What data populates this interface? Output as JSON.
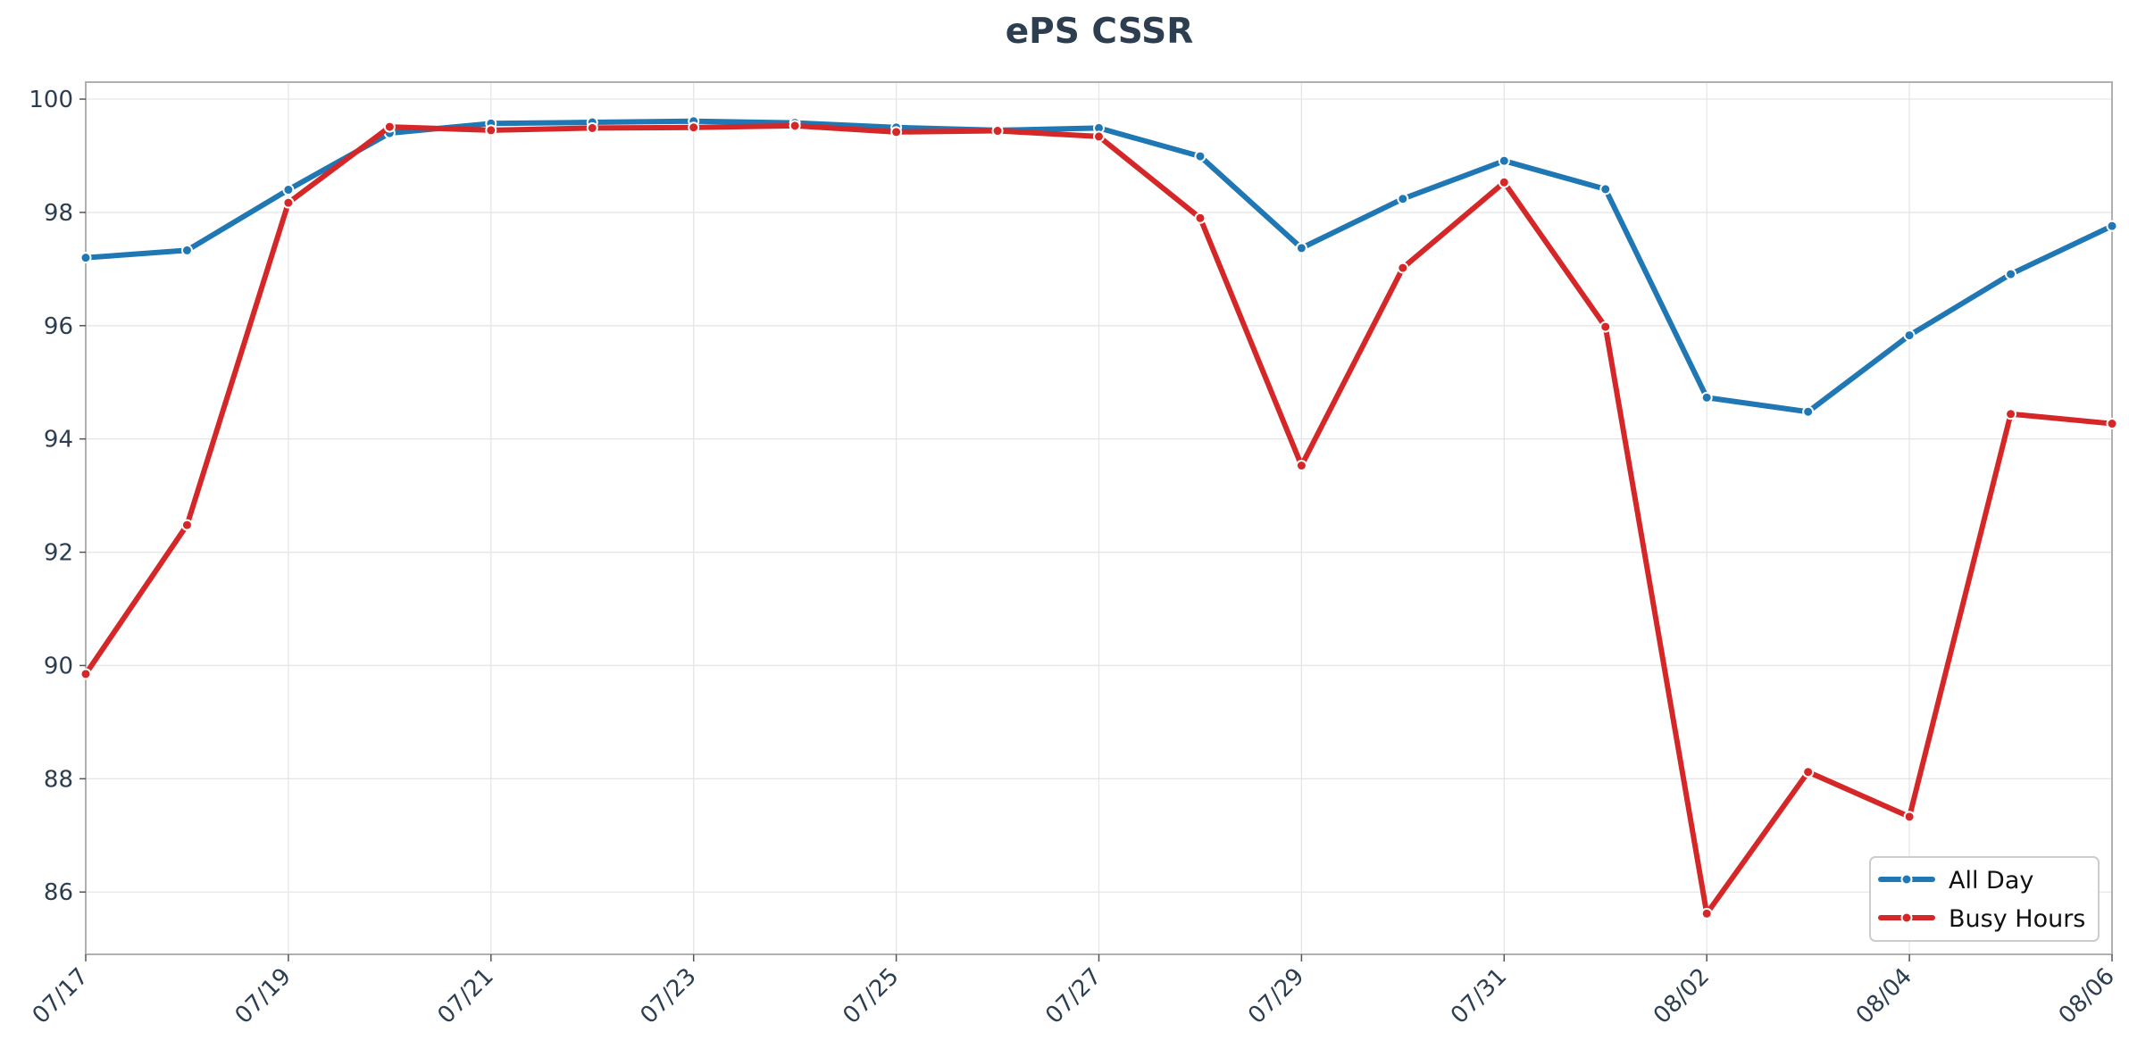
{
  "chart_data": {
    "type": "line",
    "title": "ePS CSSR",
    "xlabel": "",
    "ylabel": "",
    "x": [
      "07/17",
      "07/18",
      "07/19",
      "07/20",
      "07/21",
      "07/22",
      "07/23",
      "07/24",
      "07/25",
      "07/26",
      "07/27",
      "07/28",
      "07/29",
      "07/30",
      "07/31",
      "08/01",
      "08/02",
      "08/03",
      "08/04",
      "08/05",
      "08/06"
    ],
    "x_tick_labels": [
      "07/17",
      "07/19",
      "07/21",
      "07/23",
      "07/25",
      "07/27",
      "07/29",
      "07/31",
      "08/02",
      "08/04",
      "08/06"
    ],
    "ylim": [
      84.9,
      100.3
    ],
    "y_ticks": [
      86,
      88,
      90,
      92,
      94,
      96,
      98,
      100
    ],
    "grid": true,
    "legend_position": "bottom-right",
    "series": [
      {
        "name": "All Day",
        "color": "#1f77b4",
        "values": [
          97.2,
          97.33,
          98.4,
          99.4,
          99.57,
          99.59,
          99.61,
          99.58,
          99.5,
          99.45,
          99.49,
          98.99,
          97.37,
          98.24,
          98.91,
          98.41,
          94.73,
          94.48,
          95.83,
          96.91,
          97.76
        ]
      },
      {
        "name": "Busy Hours",
        "color": "#d62728",
        "values": [
          89.85,
          92.48,
          98.17,
          99.51,
          99.45,
          99.49,
          99.5,
          99.53,
          99.42,
          99.44,
          99.34,
          97.9,
          93.53,
          97.02,
          98.53,
          95.98,
          85.62,
          88.12,
          87.33,
          94.44,
          94.27
        ]
      }
    ]
  }
}
